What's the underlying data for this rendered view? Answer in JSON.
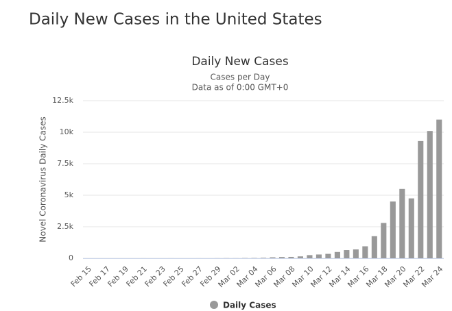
{
  "page_title": "Daily New Cases in the United States",
  "chart_data": {
    "type": "bar",
    "title": "Daily New Cases",
    "subtitle": [
      "Cases per Day",
      "Data as of 0:00 GMT+0"
    ],
    "y_label": "Novel Coronavirus Daily Cases",
    "categories": [
      "Feb 15",
      null,
      "Feb 17",
      null,
      "Feb 19",
      null,
      "Feb 21",
      null,
      "Feb 23",
      null,
      "Feb 25",
      null,
      "Feb 27",
      null,
      "Feb 29",
      null,
      "Mar 02",
      null,
      "Mar 04",
      null,
      "Mar 06",
      null,
      "Mar 08",
      null,
      "Mar 10",
      null,
      "Mar 12",
      null,
      "Mar 14",
      null,
      "Mar 16",
      null,
      "Mar 18",
      null,
      "Mar 20",
      null,
      "Mar 22",
      null,
      "Mar 24"
    ],
    "series": [
      {
        "name": "Daily Cases",
        "color": "#999999",
        "values": [
          0,
          0,
          0,
          0,
          0,
          0,
          2,
          0,
          0,
          2,
          0,
          0,
          1,
          0,
          5,
          8,
          6,
          17,
          21,
          36,
          75,
          100,
          110,
          150,
          250,
          300,
          350,
          500,
          650,
          700,
          950,
          1750,
          2800,
          4500,
          5500,
          4750,
          9300,
          10100,
          11000
        ]
      }
    ],
    "ylim": [
      0,
      12500
    ],
    "yticks": [
      0,
      {
        "value": 2500,
        "label": "2.5k"
      },
      {
        "value": 5000,
        "label": "5k"
      },
      {
        "value": 7500,
        "label": "7.5k"
      },
      {
        "value": 10000,
        "label": "10k"
      },
      {
        "value": 12500,
        "label": "12.5k"
      }
    ],
    "grid": true
  }
}
